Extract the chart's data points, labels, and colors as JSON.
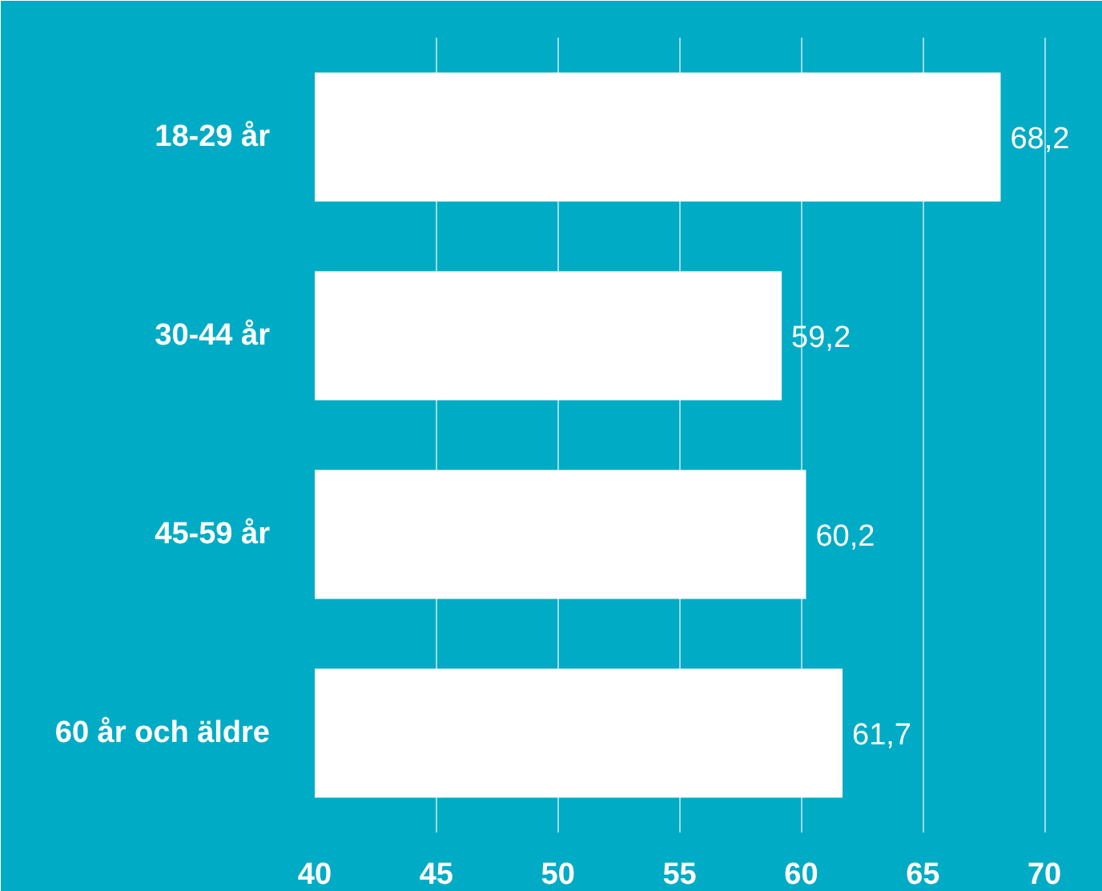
{
  "chart_data": {
    "type": "bar",
    "orientation": "horizontal",
    "categories": [
      "18-29 år",
      "30-44 år",
      "45-59 år",
      "60 år och äldre"
    ],
    "values": [
      68.2,
      59.2,
      60.2,
      61.7
    ],
    "value_labels": [
      "68,2",
      "59,2",
      "60,2",
      "61,7"
    ],
    "color": "#ffffff",
    "xlim": [
      40,
      72.4
    ],
    "xticks": [
      40,
      45,
      50,
      55,
      60,
      65,
      70
    ],
    "grid": "x"
  }
}
